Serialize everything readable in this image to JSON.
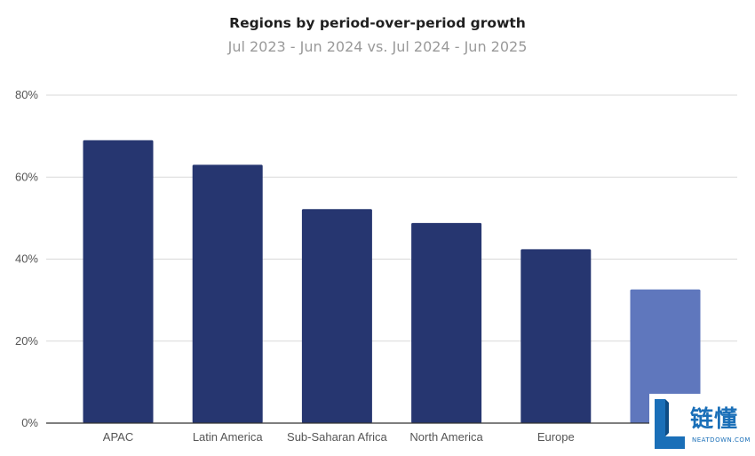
{
  "chart_data": {
    "type": "bar",
    "title": "Regions by period-over-period growth",
    "subtitle": "Jul 2023 - Jun 2024 vs. Jul 2024 - Jun 2025",
    "xlabel": "",
    "ylabel": "",
    "categories": [
      "APAC",
      "Latin America",
      "Sub-Saharan Africa",
      "North America",
      "Europe",
      ""
    ],
    "values": [
      69,
      63,
      52.2,
      48.8,
      42.4,
      32.6
    ],
    "value_unit": "%",
    "ylim": [
      0,
      80
    ],
    "yticks": [
      0,
      20,
      40,
      60,
      80
    ],
    "ytick_labels": [
      "0%",
      "20%",
      "40%",
      "60%",
      "80%"
    ],
    "grid": true,
    "legend": "none",
    "colors": {
      "bar": "#263670",
      "bar_highlight": "#5f77bd",
      "grid": "#d9d9d9",
      "axis": "#333333"
    },
    "highlight_index": 5
  },
  "watermark": {
    "logo_text": "链懂",
    "site": "NEATDOWN.COM"
  }
}
